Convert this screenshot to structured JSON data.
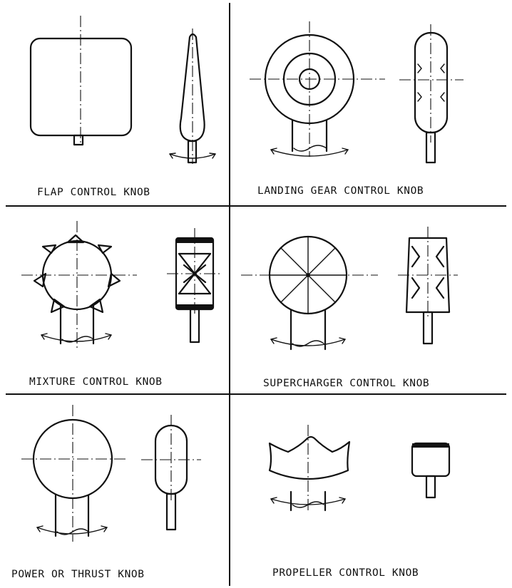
{
  "knobs": [
    {
      "label": "FLAP CONTROL KNOB"
    },
    {
      "label": "LANDING GEAR CONTROL KNOB"
    },
    {
      "label": "MIXTURE CONTROL KNOB"
    },
    {
      "label": "SUPERCHARGER CONTROL KNOB"
    },
    {
      "label": "POWER OR THRUST KNOB"
    },
    {
      "label": "PROPELLER CONTROL KNOB"
    }
  ]
}
